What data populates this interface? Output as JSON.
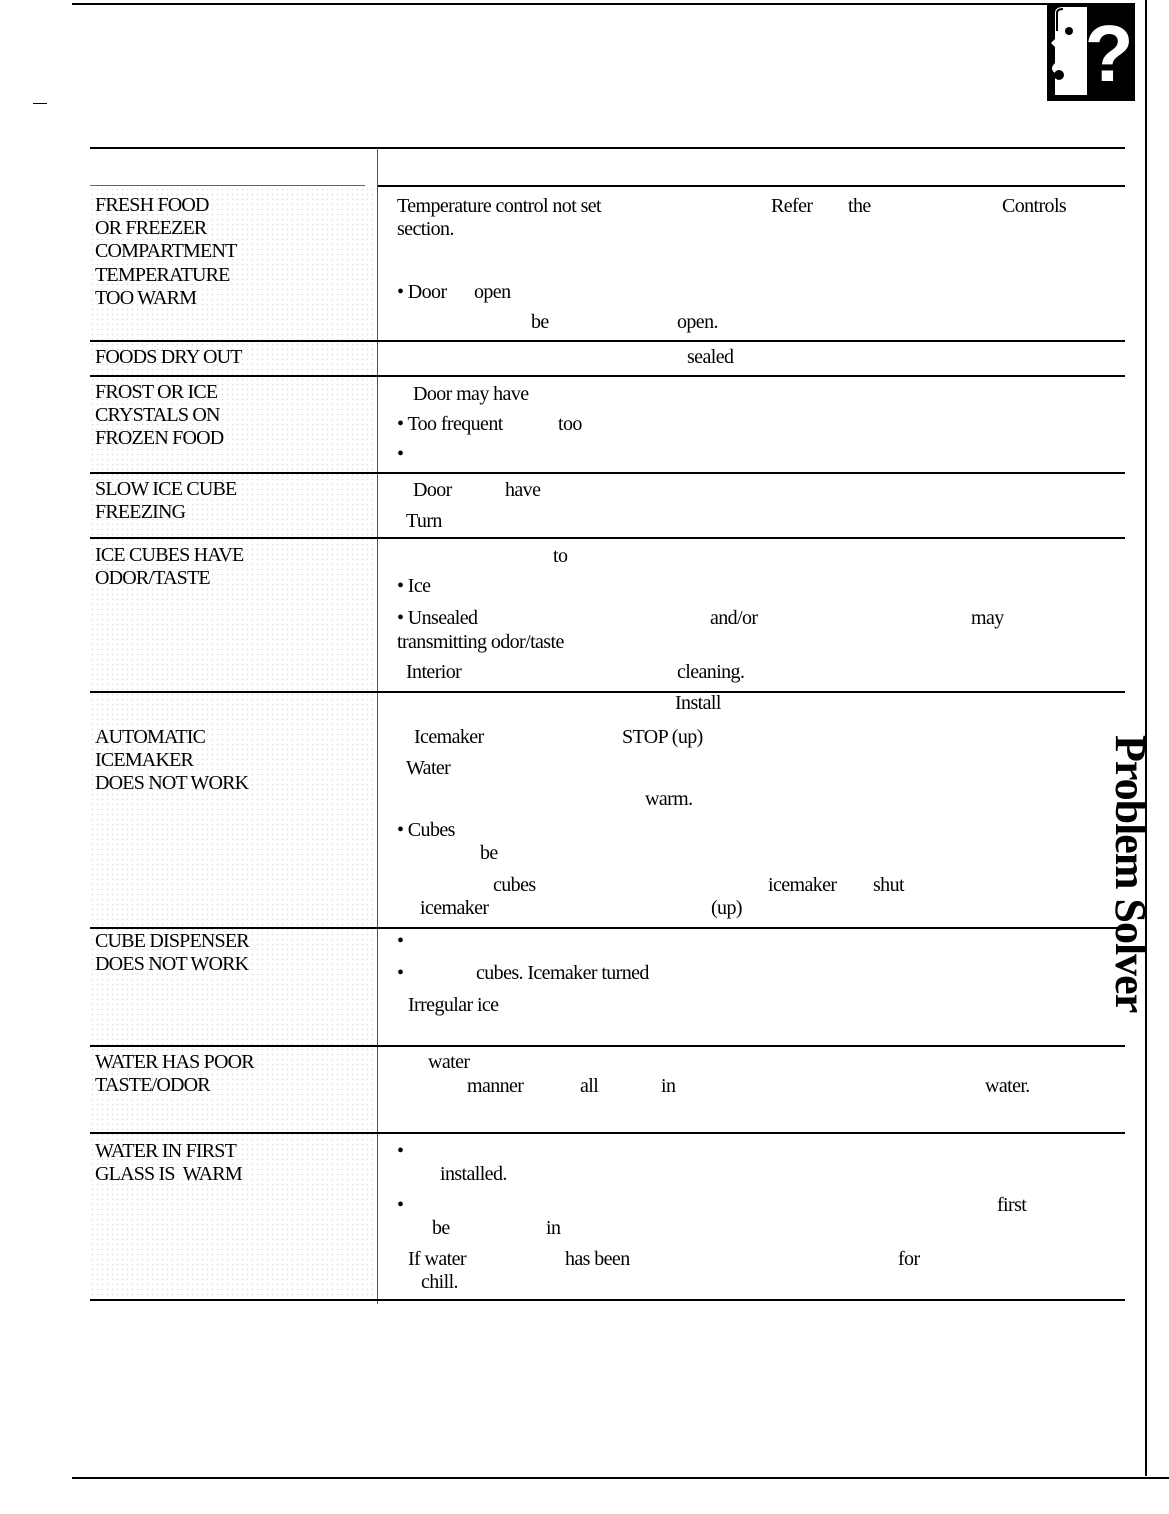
{
  "side_tab": "Problem Solver",
  "rows": [
    {
      "problem": [
        "FRESH FOOD",
        "OR FREEZER",
        "COMPARTMENT",
        "TEMPERATURE",
        "TOO WARM"
      ],
      "cause": [
        "Temperature control not set",
        "Refer",
        "the",
        "Controls",
        "section.",
        "• Door",
        "open",
        "be",
        "open."
      ]
    },
    {
      "problem": [
        "FOODS DRY OUT"
      ],
      "cause": [
        "sealed"
      ]
    },
    {
      "problem": [
        "FROST OR ICE",
        "CRYSTALS ON",
        "FROZEN FOOD"
      ],
      "cause": [
        "Door may have",
        "• Too frequent",
        "too",
        "•"
      ]
    },
    {
      "problem": [
        "SLOW ICE CUBE",
        "FREEZING"
      ],
      "cause": [
        "Door",
        "have",
        "Turn"
      ]
    },
    {
      "problem": [
        "ICE CUBES HAVE",
        "ODOR/TASTE"
      ],
      "cause": [
        "to",
        "• Ice",
        "• Unsealed",
        "and/or",
        "may",
        "transmitting odor/taste",
        "Interior",
        "cleaning.",
        "Install"
      ]
    },
    {
      "problem": [
        "AUTOMATIC",
        "ICEMAKER",
        "DOES NOT WORK"
      ],
      "cause": [
        "Icemaker",
        "STOP (up)",
        "Water",
        "warm.",
        "• Cubes",
        "be",
        "cubes",
        "icemaker",
        "shut",
        "icemaker",
        "(up)"
      ]
    },
    {
      "problem": [
        "CUBE DISPENSER",
        "DOES NOT WORK"
      ],
      "cause": [
        "•",
        "•",
        "cubes. Icemaker turned",
        "Irregular ice"
      ]
    },
    {
      "problem": [
        "WATER HAS POOR",
        "TASTE/ODOR"
      ],
      "cause": [
        "water",
        "manner",
        "all",
        "in",
        "water."
      ]
    },
    {
      "problem": [
        "WATER IN FIRST",
        "GLASS IS  WARM"
      ],
      "cause": [
        "•",
        "installed.",
        "•",
        "first",
        "be",
        "in",
        "If water",
        "has been",
        "for",
        "chill."
      ]
    }
  ]
}
